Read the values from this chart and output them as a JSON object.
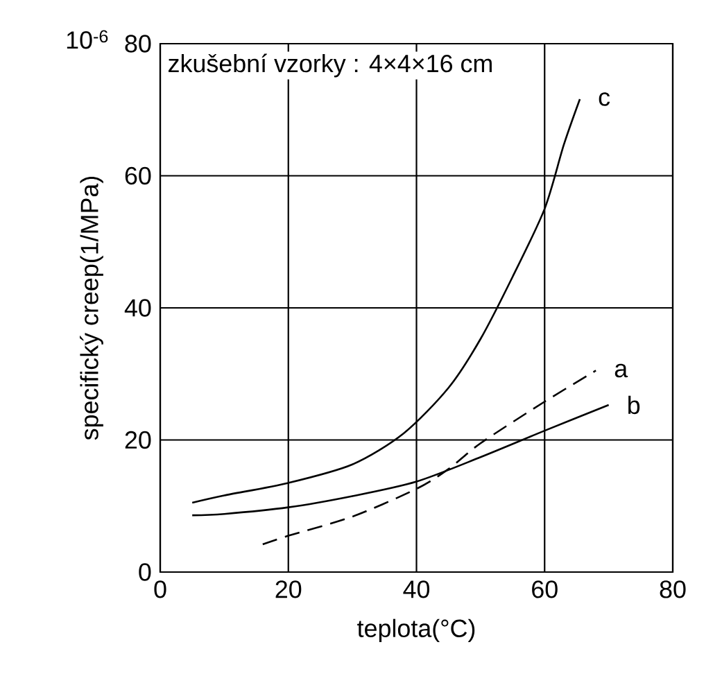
{
  "chart_data": {
    "type": "line",
    "title": "zkušební vzorky : 4×4×16 cm",
    "xlabel": "teplota(°C)",
    "ylabel": "specifický creep(1/MPa)",
    "annotations": [
      "10$^{-6}$"
    ],
    "xlim": [
      0,
      80
    ],
    "xticks": [
      0,
      20,
      40,
      60,
      80
    ],
    "ylim": [
      0,
      80
    ],
    "yticks": [
      0,
      20,
      40,
      60,
      80
    ],
    "grid": true,
    "color": "#000000",
    "series": [
      {
        "name": "a",
        "line_style": "dashed",
        "x": [
          16,
          20,
          30,
          40,
          45,
          50,
          60,
          68
        ],
        "values": [
          4.2,
          5.5,
          8.4,
          12.6,
          15.6,
          19.5,
          25.8,
          30.5
        ]
      },
      {
        "name": "b",
        "line_style": "solid",
        "x": [
          5,
          10,
          20,
          30,
          40,
          50,
          60,
          70
        ],
        "values": [
          8.6,
          8.8,
          9.8,
          11.5,
          13.7,
          17.4,
          21.4,
          25.3
        ]
      },
      {
        "name": "c",
        "line_style": "solid",
        "x": [
          5,
          10,
          20,
          30,
          38,
          45,
          50,
          55,
          60,
          63,
          65.5
        ],
        "values": [
          10.5,
          11.6,
          13.5,
          16.3,
          21,
          27.9,
          35.3,
          44.7,
          55,
          64.7,
          71.6
        ]
      }
    ]
  }
}
